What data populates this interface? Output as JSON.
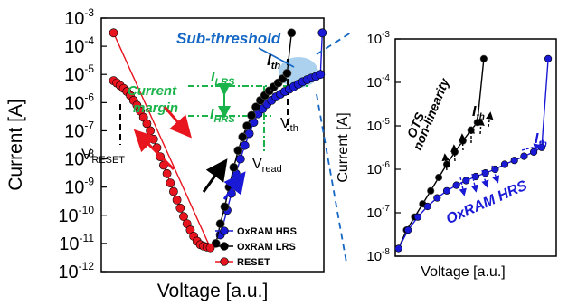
{
  "colors": {
    "oxram_hrs": "#1a1ad6",
    "oxram_lrs": "#000000",
    "reset": "#e8141e",
    "green": "#19b34a",
    "annot_blue": "#1467c4",
    "highlight": "#8fc2e8"
  },
  "chart_data": [
    {
      "type": "scatter",
      "xlabel": "Voltage [a.u.]",
      "ylabel": "Current [A]",
      "yscale": "log",
      "y_ticks": [
        {
          "base": "10",
          "exp": "-3"
        },
        {
          "base": "10",
          "exp": "-4"
        },
        {
          "base": "10",
          "exp": "-5"
        },
        {
          "base": "10",
          "exp": "-6"
        },
        {
          "base": "10",
          "exp": "-7"
        },
        {
          "base": "10",
          "exp": "-8"
        },
        {
          "base": "10",
          "exp": "-9"
        },
        {
          "base": "10",
          "exp": "-10"
        },
        {
          "base": "10",
          "exp": "-11"
        },
        {
          "base": "10",
          "exp": "-12"
        }
      ],
      "ylim": [
        1e-12,
        0.001
      ],
      "legend_position": "bottom-right",
      "series": [
        {
          "name": "OxRAM HRS",
          "color": "#1a1ad6",
          "x": [
            0.535,
            0.565,
            0.585,
            0.605,
            0.625,
            0.645,
            0.665,
            0.685,
            0.705,
            0.725,
            0.745,
            0.765,
            0.785,
            0.805,
            0.825,
            0.845,
            0.865,
            0.885,
            0.905,
            0.925,
            0.945,
            0.965,
            0.985,
            0.993
          ],
          "y": [
            2e-11,
            1.5e-10,
            6e-10,
            3e-09,
            1e-08,
            3e-08,
            8e-08,
            2e-07,
            4e-07,
            6e-07,
            9e-07,
            1.2e-06,
            1.6e-06,
            2e-06,
            2.5e-06,
            3e-06,
            3.7e-06,
            4.5e-06,
            5.5e-06,
            6.5e-06,
            7.5e-06,
            8.5e-06,
            1e-05,
            0.0003
          ]
        },
        {
          "name": "OxRAM LRS",
          "color": "#000000",
          "x": [
            0.515,
            0.535,
            0.555,
            0.575,
            0.595,
            0.615,
            0.635,
            0.655,
            0.675,
            0.695,
            0.715,
            0.735,
            0.755,
            0.775,
            0.795,
            0.815,
            0.835,
            0.855
          ],
          "y": [
            1e-11,
            5e-11,
            2e-10,
            1e-09,
            5e-09,
            2e-08,
            6e-08,
            1.5e-07,
            3.5e-07,
            7e-07,
            1.2e-06,
            1.8e-06,
            2.6e-06,
            3.6e-06,
            5e-06,
            7e-06,
            1.1e-05,
            0.0003
          ]
        },
        {
          "name": "RESET",
          "color": "#e8141e",
          "x": [
            0.055,
            0.07,
            0.085,
            0.1,
            0.115,
            0.13,
            0.145,
            0.16,
            0.175,
            0.19,
            0.205,
            0.22,
            0.235,
            0.25,
            0.265,
            0.28,
            0.295,
            0.31,
            0.325,
            0.34,
            0.355,
            0.37,
            0.385,
            0.4,
            0.415,
            0.43,
            0.445,
            0.46,
            0.475,
            0.49,
            0.055
          ],
          "y": [
            6e-06,
            5e-06,
            4e-06,
            3.2e-06,
            2.5e-06,
            1.8e-06,
            1.2e-06,
            8e-07,
            5e-07,
            3e-07,
            1.8e-07,
            1e-07,
            5e-08,
            2.5e-08,
            1.2e-08,
            6e-09,
            3e-09,
            1.4e-09,
            7e-10,
            3.5e-10,
            1.8e-10,
            9e-11,
            5e-11,
            3e-11,
            1.8e-11,
            1.2e-11,
            9e-12,
            8e-12,
            7.5e-12,
            7e-12,
            0.0003
          ]
        }
      ],
      "annotations": {
        "sub_threshold": "Sub-threshold",
        "current_margin_line1": "Current",
        "current_margin_line2": "margin",
        "ilrs_base": "I",
        "ilrs_sub": "LRS",
        "ihrs_base": "I",
        "ihrs_sub": "HRS",
        "ith_base": "I",
        "ith_sub": "th",
        "vth_base": "V",
        "vth_sub": "th",
        "vread_base": "V",
        "vread_sub": "read",
        "vreset_base": "V",
        "vreset_sub": "RESET"
      }
    },
    {
      "type": "scatter",
      "xlabel": "Voltage [a.u.]",
      "ylabel": "Current [A]",
      "yscale": "log",
      "y_ticks": [
        {
          "base": "10",
          "exp": "-3"
        },
        {
          "base": "10",
          "exp": "-4"
        },
        {
          "base": "10",
          "exp": "-5"
        },
        {
          "base": "10",
          "exp": "-6"
        },
        {
          "base": "10",
          "exp": "-7"
        },
        {
          "base": "10",
          "exp": "-8"
        }
      ],
      "ylim": [
        1e-08,
        0.001
      ],
      "series": [
        {
          "name": "OxRAM LRS",
          "color": "#000000",
          "x": [
            0.02,
            0.07,
            0.12,
            0.17,
            0.22,
            0.27,
            0.32,
            0.37,
            0.42,
            0.47,
            0.51,
            0.55
          ],
          "y": [
            1.5e-08,
            4e-08,
            8e-08,
            1.6e-07,
            3.2e-07,
            6.5e-07,
            1.3e-06,
            2.5e-06,
            4.5e-06,
            8e-06,
            1.2e-05,
            0.00035
          ]
        },
        {
          "name": "OxRAM HRS",
          "color": "#1a1ad6",
          "x": [
            0.02,
            0.08,
            0.14,
            0.2,
            0.26,
            0.32,
            0.38,
            0.44,
            0.5,
            0.56,
            0.62,
            0.68,
            0.74,
            0.8,
            0.86,
            0.91,
            0.95
          ],
          "y": [
            1.5e-08,
            4e-08,
            8e-08,
            1.4e-07,
            2.2e-07,
            3.2e-07,
            4.3e-07,
            5.5e-07,
            6.8e-07,
            8.2e-07,
            1e-06,
            1.3e-06,
            1.6e-06,
            2e-06,
            2.5e-06,
            3.2e-06,
            0.00035
          ]
        }
      ],
      "annotations": {
        "ots_line1": "OTS",
        "ots_line2": "non-linearity",
        "oxram_hrs_label": "OxRAM HRS",
        "ith_base": "I",
        "ith_sub": "th"
      }
    }
  ]
}
